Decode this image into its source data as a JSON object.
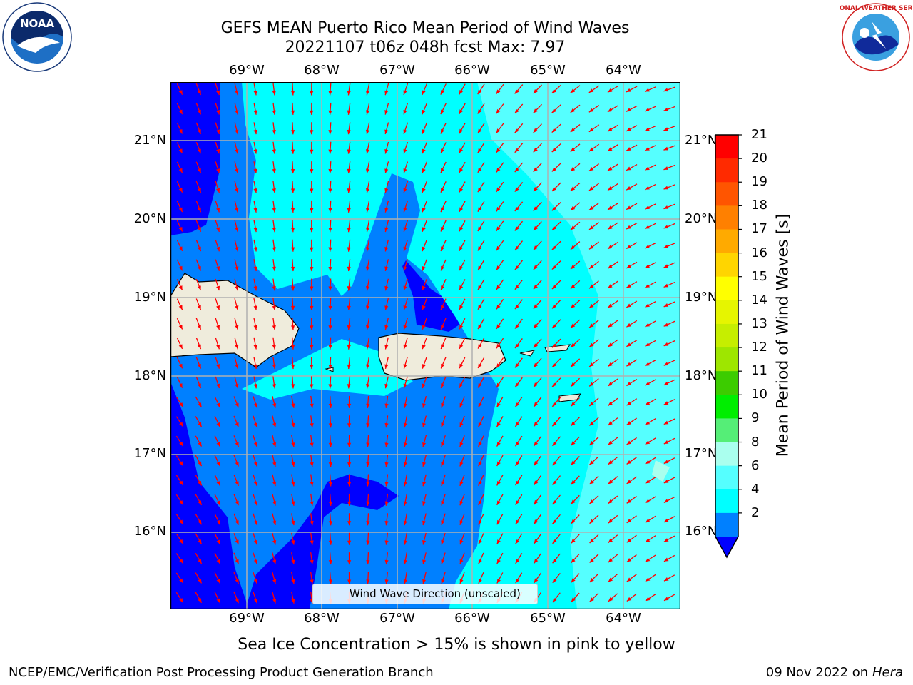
{
  "title": {
    "line1": "GEFS MEAN Puerto Rico Mean Period of Wind Waves",
    "line2": "20221107 t06z 048h fcst   Max: 7.97"
  },
  "map": {
    "lon_labels": [
      "69°W",
      "68°W",
      "67°W",
      "66°W",
      "65°W",
      "64°W"
    ],
    "lat_labels": [
      "21°N",
      "20°N",
      "19°N",
      "18°N",
      "17°N",
      "16°N"
    ],
    "land_color": "#efecdc",
    "arrow_color": "#ff0000"
  },
  "legend": {
    "label": "Wind Wave Direction (unscaled)"
  },
  "colorbar": {
    "title": "Mean Period of Wind Waves [s]",
    "tick_labels": [
      "21",
      "20",
      "19",
      "18",
      "17",
      "16",
      "15",
      "14",
      "13",
      "12",
      "11",
      "10",
      "9",
      "8",
      "6",
      "4",
      "2"
    ],
    "colors": [
      "#ff0000",
      "#ff2a00",
      "#ff5500",
      "#ff8000",
      "#ffaa00",
      "#ffd500",
      "#ffff00",
      "#e6f500",
      "#c6ee00",
      "#9ee600",
      "#3ccc00",
      "#00ee00",
      "#55ee77",
      "#aaffee",
      "#55ffff",
      "#00ffff",
      "#0080ff"
    ],
    "under_color": "#0000ff"
  },
  "logos": {
    "noaa": "NOAA",
    "nws": "NATIONAL WEATHER SERVICE"
  },
  "caption": "Sea Ice Concentration > 15% is shown in pink to yellow",
  "footer": {
    "left": "NCEP/EMC/Verification Post Processing Product Generation Branch",
    "right_date": "09 Nov 2022 on",
    "right_host": "Hera"
  }
}
